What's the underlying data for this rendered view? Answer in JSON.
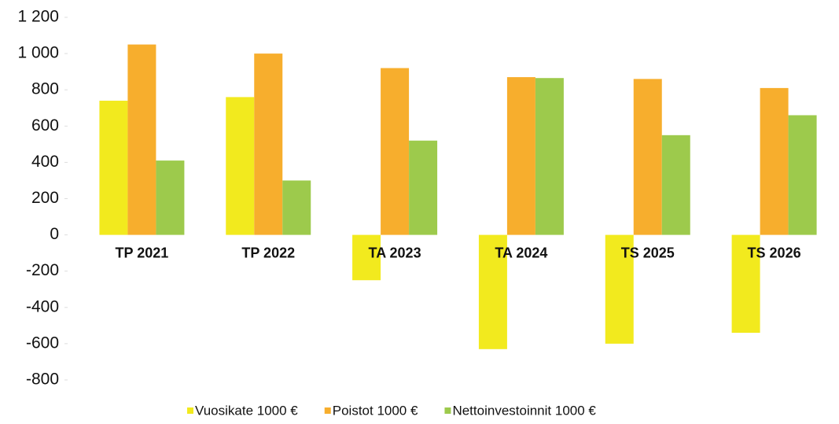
{
  "chart_data": {
    "type": "bar",
    "categories": [
      "TP 2021",
      "TP 2022",
      "TA 2023",
      "TA 2024",
      "TS 2025",
      "TS 2026"
    ],
    "series": [
      {
        "name": "Vuosikate 1000 €",
        "color": "#f2ea1e",
        "values": [
          740,
          760,
          -250,
          -630,
          -600,
          -540
        ]
      },
      {
        "name": "Poistot 1000 €",
        "color": "#f7ae2d",
        "values": [
          1050,
          1000,
          920,
          870,
          860,
          810
        ]
      },
      {
        "name": "Nettoinvestoinnit 1000 €",
        "color": "#9dca4c",
        "values": [
          410,
          300,
          520,
          865,
          550,
          660
        ]
      }
    ],
    "ylim": [
      -800,
      1200
    ],
    "yticks": [
      -800,
      -600,
      -400,
      -200,
      0,
      200,
      400,
      600,
      {
        "value": 800,
        "label": "800"
      },
      {
        "value": 1000,
        "label": "1 000"
      },
      {
        "value": 1200,
        "label": "1 200"
      }
    ],
    "grid": false,
    "legend": "bottom"
  }
}
